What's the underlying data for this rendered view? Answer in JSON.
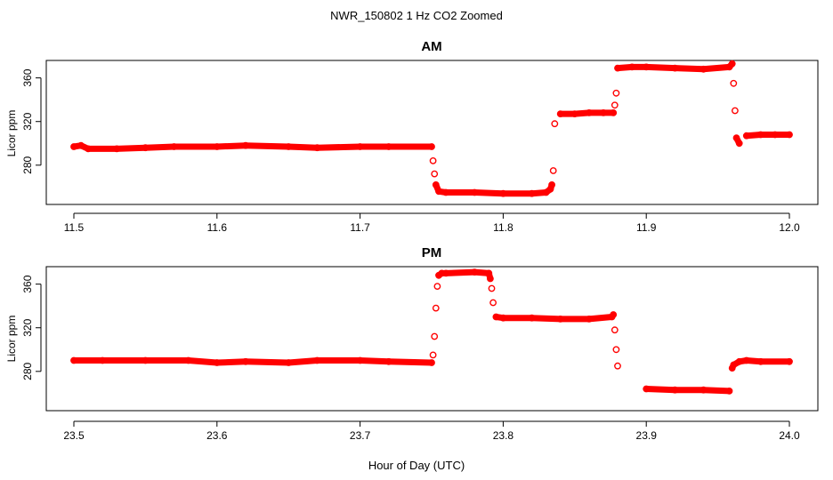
{
  "figure": {
    "title": "NWR_150802  1 Hz CO2 Zoomed",
    "xlabel": "Hour of Day (UTC)"
  },
  "colors": {
    "points": "#ff0000",
    "axis": "#000000",
    "background": "#ffffff"
  },
  "chart_data": [
    {
      "type": "scatter",
      "title": "AM",
      "xlabel": "Hour of Day (UTC)",
      "ylabel": "Licor ppm",
      "xlim": [
        11.5,
        12.0
      ],
      "ylim": [
        244,
        376
      ],
      "xticks": [
        "11.5",
        "11.6",
        "11.7",
        "11.8",
        "11.9",
        "12.0"
      ],
      "yticks": [
        "280",
        "320",
        "360"
      ],
      "grid": false,
      "legend": "none",
      "series": [
        {
          "x": [
            11.5,
            11.505,
            11.51,
            11.53,
            11.55,
            11.57,
            11.6,
            11.62,
            11.65,
            11.67,
            11.7,
            11.72,
            11.75,
            11.751,
            11.752,
            11.753,
            11.755,
            11.76,
            11.78,
            11.8,
            11.82,
            11.83,
            11.833,
            11.834,
            11.835,
            11.836,
            11.84,
            11.85,
            11.86,
            11.87,
            11.877,
            11.878,
            11.879,
            11.88,
            11.89,
            11.9,
            11.92,
            11.94,
            11.958,
            11.96,
            11.961,
            11.962,
            11.963,
            11.965,
            11.97,
            11.98,
            11.99,
            12.0
          ],
          "y": [
            297,
            298,
            295,
            295,
            296,
            297,
            297,
            298,
            297,
            296,
            297,
            297,
            297,
            284,
            272,
            262,
            256,
            255,
            255,
            254,
            254,
            255,
            258,
            262,
            275,
            318,
            327,
            327,
            328,
            328,
            328,
            335,
            346,
            369,
            370,
            370,
            369,
            368,
            370,
            373,
            355,
            330,
            305,
            300,
            307,
            308,
            308,
            308
          ]
        }
      ]
    },
    {
      "type": "scatter",
      "title": "PM",
      "xlabel": "Hour of Day (UTC)",
      "ylabel": "Licor ppm",
      "xlim": [
        23.5,
        24.0
      ],
      "ylim": [
        244,
        376
      ],
      "xticks": [
        "23.5",
        "23.6",
        "23.7",
        "23.8",
        "23.9",
        "24.0"
      ],
      "yticks": [
        "280",
        "320",
        "360"
      ],
      "grid": false,
      "legend": "none",
      "series": [
        {
          "x": [
            23.5,
            23.52,
            23.55,
            23.58,
            23.6,
            23.62,
            23.65,
            23.67,
            23.7,
            23.72,
            23.75,
            23.751,
            23.752,
            23.753,
            23.754,
            23.755,
            23.757,
            23.76,
            23.78,
            23.79,
            23.791,
            23.792,
            23.793,
            23.795,
            23.8,
            23.82,
            23.84,
            23.86,
            23.876,
            23.877,
            23.878,
            23.879,
            23.88,
            23.9,
            23.92,
            23.94,
            23.958,
            23.96,
            23.961,
            23.965,
            23.97,
            23.98,
            24.0
          ],
          "y": [
            290,
            290,
            290,
            290,
            288,
            289,
            288,
            290,
            290,
            289,
            288,
            295,
            312,
            338,
            358,
            368,
            370,
            370,
            371,
            370,
            365,
            356,
            343,
            330,
            329,
            329,
            328,
            328,
            330,
            332,
            318,
            300,
            285,
            264,
            263,
            263,
            262,
            283,
            286,
            289,
            290,
            289,
            289
          ]
        }
      ]
    }
  ]
}
